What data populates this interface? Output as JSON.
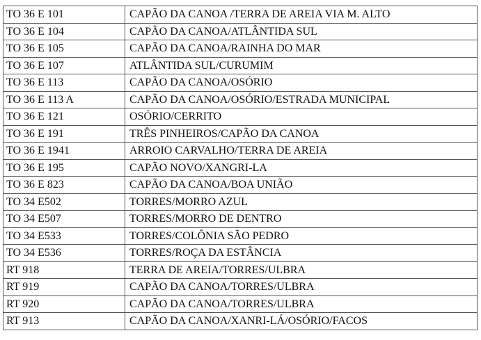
{
  "rows": [
    {
      "code": "TO 36 E 101",
      "route": "CAPÃO DA CANOA /TERRA DE AREIA VIA M. ALTO"
    },
    {
      "code": "TO 36 E 104",
      "route": "CAPÃO DA CANOA/ATLÂNTIDA SUL"
    },
    {
      "code": "TO 36 E 105",
      "route": "CAPÃO DA CANOA/RAINHA DO MAR"
    },
    {
      "code": "TO 36 E 107",
      "route": "ATLÂNTIDA SUL/CURUMIM"
    },
    {
      "code": "TO 36 E 113",
      "route": "CAPÃO DA CANOA/OSÓRIO"
    },
    {
      "code": "TO 36 E 113 A",
      "route": "CAPÃO DA CANOA/OSÓRIO/ESTRADA MUNICIPAL"
    },
    {
      "code": "TO 36 E 121",
      "route": "OSÓRIO/CERRITO"
    },
    {
      "code": "TO 36 E 191",
      "route": "TRÊS PINHEIROS/CAPÃO DA CANOA"
    },
    {
      "code": "TO 36 E 1941",
      "route": "ARROIO CARVALHO/TERRA DE AREIA"
    },
    {
      "code": "TO 36 E 195",
      "route": "CAPÃO NOVO/XANGRI-LA"
    },
    {
      "code": "TO 36 E 823",
      "route": "CAPÃO DA CANOA/BOA UNIÃO"
    },
    {
      "code": "TO 34 E502",
      "route": "TORRES/MORRO AZUL"
    },
    {
      "code": "TO 34 E507",
      "route": "TORRES/MORRO DE DENTRO"
    },
    {
      "code": "TO 34 E533",
      "route": "TORRES/COLÔNIA SÃO PEDRO"
    },
    {
      "code": "TO 34 E536",
      "route": "TORRES/ROÇA DA ESTÂNCIA"
    },
    {
      "code": "RT 918",
      "route": "TERRA DE AREIA/TORRES/ULBRA"
    },
    {
      "code": "RT 919",
      "route": "CAPÃO DA CANOA/TORRES/ULBRA"
    },
    {
      "code": "RT 920",
      "route": "CAPÃO DA CANOA/TORRES/ULBRA"
    },
    {
      "code": "RT 913",
      "route": "CAPÃO DA CANOA/XANRI-LÁ/OSÓRIO/FACOS"
    }
  ]
}
